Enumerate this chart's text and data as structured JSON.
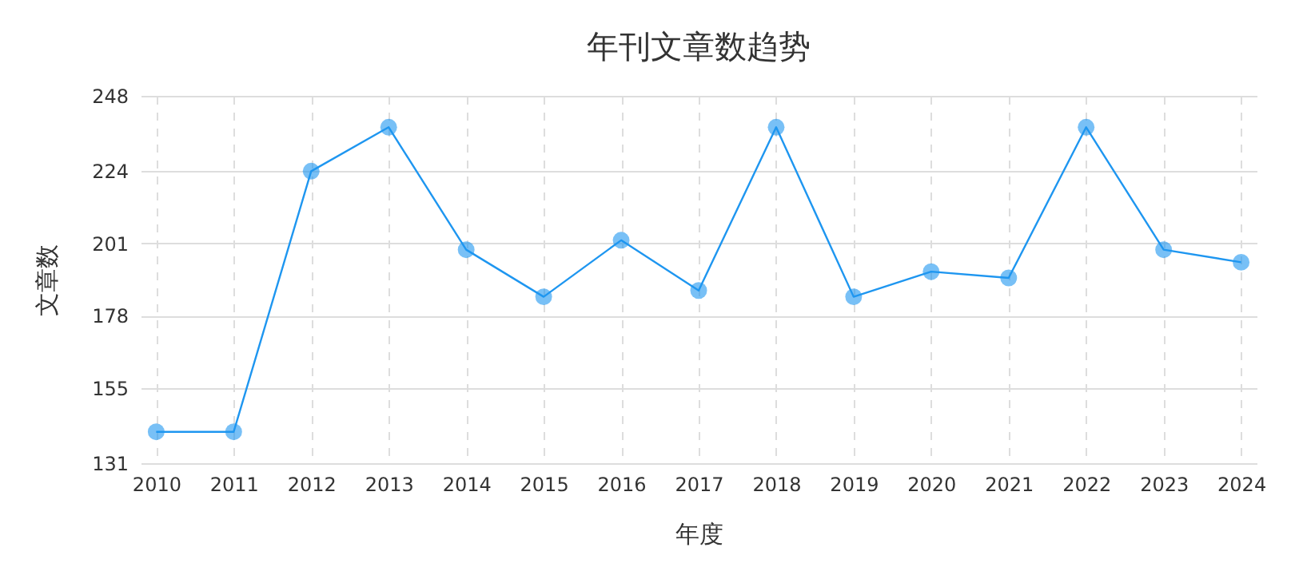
{
  "chart_data": {
    "type": "line",
    "title": "年刊文章数趋势",
    "xlabel": "年度",
    "ylabel": "文章数",
    "categories": [
      "2010",
      "2011",
      "2012",
      "2013",
      "2014",
      "2015",
      "2016",
      "2017",
      "2018",
      "2019",
      "2020",
      "2021",
      "2022",
      "2023",
      "2024"
    ],
    "series": [
      {
        "color": "#1e96f0",
        "values": [
          141,
          141,
          224,
          238,
          199,
          184,
          202,
          186,
          238,
          184,
          192,
          190,
          238,
          199,
          195
        ]
      }
    ],
    "ylim": [
      131,
      248
    ],
    "yticks": [
      131,
      155,
      178,
      201,
      224,
      248
    ],
    "grid": true,
    "marker": "circle",
    "line_style": "solid"
  }
}
